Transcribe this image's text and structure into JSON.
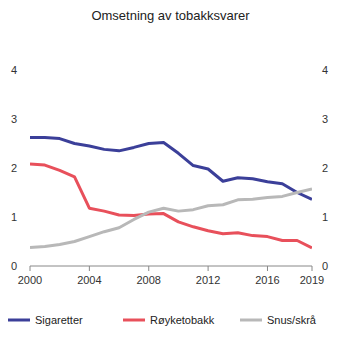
{
  "chart_data": {
    "type": "line",
    "title": "Omsetning av tobakksvarer",
    "x": [
      2000,
      2001,
      2002,
      2003,
      2004,
      2005,
      2006,
      2007,
      2008,
      2009,
      2010,
      2011,
      2012,
      2013,
      2014,
      2015,
      2016,
      2017,
      2018,
      2019
    ],
    "xlim": [
      2000,
      2019
    ],
    "xticks": [
      2000,
      2004,
      2008,
      2012,
      2016,
      2019
    ],
    "ylim": [
      0,
      4
    ],
    "yticks": [
      0,
      1,
      2,
      3,
      4
    ],
    "y2lim": [
      0,
      4
    ],
    "y2ticks": [
      0,
      1,
      2,
      3,
      4
    ],
    "grid": false,
    "legend": "bottom",
    "series": [
      {
        "name": "Sigaretter",
        "color": "#3b3f99",
        "values": [
          2.62,
          2.62,
          2.6,
          2.5,
          2.45,
          2.38,
          2.35,
          2.42,
          2.5,
          2.52,
          2.3,
          2.05,
          1.98,
          1.73,
          1.8,
          1.78,
          1.72,
          1.68,
          1.5,
          1.36
        ]
      },
      {
        "name": "Røyketobakk",
        "color": "#e8505b",
        "values": [
          2.08,
          2.06,
          1.95,
          1.82,
          1.18,
          1.12,
          1.04,
          1.03,
          1.06,
          1.07,
          0.9,
          0.8,
          0.72,
          0.66,
          0.68,
          0.62,
          0.6,
          0.52,
          0.52,
          0.37
        ]
      },
      {
        "name": "Snus/skrå",
        "color": "#b8b8b8",
        "values": [
          0.38,
          0.4,
          0.44,
          0.5,
          0.6,
          0.7,
          0.78,
          0.95,
          1.1,
          1.18,
          1.12,
          1.15,
          1.23,
          1.25,
          1.35,
          1.36,
          1.4,
          1.42,
          1.5,
          1.57
        ]
      }
    ]
  }
}
